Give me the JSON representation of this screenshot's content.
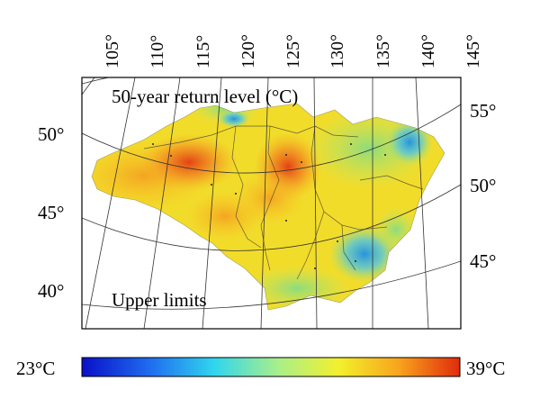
{
  "map": {
    "title": "50-year return level (°C)",
    "subtitle": "Upper limits",
    "top_longitudes": [
      "105°",
      "110°",
      "115°",
      "120°",
      "125°",
      "130°",
      "135°",
      "140°",
      "145°"
    ],
    "left_latitudes": [
      "50°",
      "45°",
      "40°"
    ],
    "right_latitudes": [
      "55°",
      "50°",
      "45°"
    ],
    "colors": {
      "region_base": "#f2dc2a",
      "hot": "#e8481a",
      "warm": "#f7a21e",
      "cool": "#9fe27a",
      "cold": "#2fb6ef"
    }
  },
  "colorbar": {
    "min_label": "23°C",
    "max_label": "39°C",
    "min_value": 23,
    "max_value": 39,
    "gradient": [
      "#0a10c8",
      "#1f6cf0",
      "#30d6ee",
      "#a9ef8a",
      "#f3f02c",
      "#f8a31c",
      "#e02b0c"
    ]
  }
}
